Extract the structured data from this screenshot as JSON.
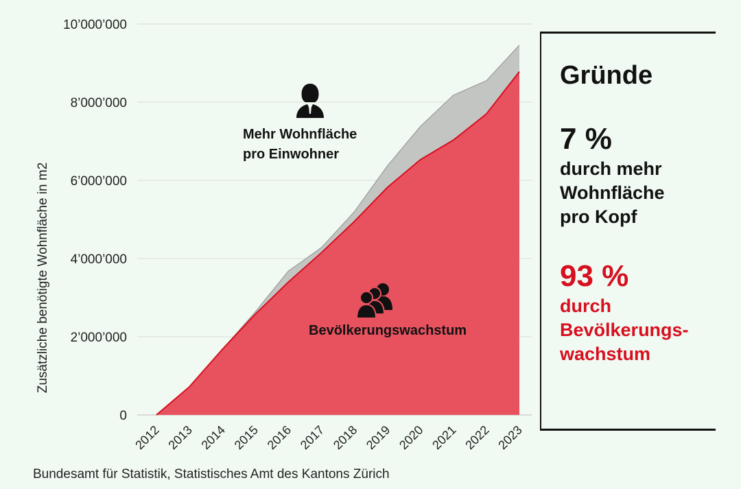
{
  "chart_data": {
    "type": "area",
    "stacked": true,
    "x": [
      "2012",
      "2013",
      "2014",
      "2015",
      "2016",
      "2017",
      "2018",
      "2019",
      "2020",
      "2021",
      "2022",
      "2023"
    ],
    "series": [
      {
        "name": "Bevölkerungswachstum",
        "color": "#e8525f",
        "values": [
          0,
          720000,
          1680000,
          2580000,
          3400000,
          4150000,
          4950000,
          5820000,
          6530000,
          7030000,
          7700000,
          8780000
        ]
      },
      {
        "name": "Mehr Wohnfläche pro Einwohner",
        "color": "#c3c5c3",
        "values": [
          0,
          0,
          0,
          60000,
          280000,
          130000,
          250000,
          550000,
          850000,
          1150000,
          850000,
          680000
        ]
      }
    ],
    "ylabel": "Zusätzliche benötigte Wohnfläche in m2",
    "ylim": [
      0,
      10000000
    ],
    "yticks": [
      0,
      2000000,
      4000000,
      6000000,
      8000000,
      10000000
    ],
    "ytick_labels": [
      "0",
      "2’000’000",
      "4’000’000",
      "6’000’000",
      "8’000’000",
      "10’000’000"
    ],
    "grid": true,
    "annotations": [
      {
        "text_lines": [
          "Mehr Wohnfläche",
          "pro Einwohner"
        ],
        "icon": "person-icon"
      },
      {
        "text_lines": [
          "Bevölkerungswachstum"
        ],
        "icon": "group-icon"
      }
    ]
  },
  "source": "Bundesamt für Statistik, Statistisches Amt des Kantons Zürich",
  "panel": {
    "title": "Gründe",
    "share_area": {
      "percent": "7 %",
      "lines": [
        "durch mehr",
        "Wohnfläche",
        "pro Kopf"
      ]
    },
    "share_pop": {
      "percent": "93 %",
      "lines": [
        "durch",
        "Bevölkerungs-",
        "wachstum"
      ]
    }
  },
  "colors": {
    "background": "#f1faf2",
    "accent_red": "#d70f1f",
    "area_red": "#e8525f",
    "area_grey": "#c3c5c3"
  }
}
